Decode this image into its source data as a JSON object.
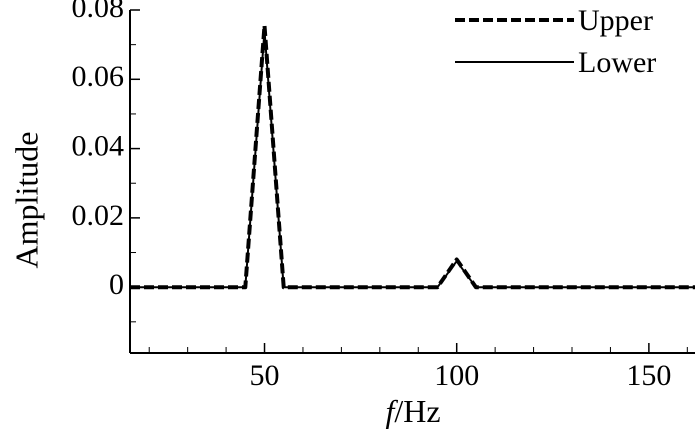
{
  "chart_data": {
    "type": "line",
    "xlabel_italic": "f",
    "xlabel_rest": "/Hz",
    "ylabel": "Amplitude",
    "xlim": [
      15,
      162
    ],
    "ylim": [
      -0.019,
      0.08
    ],
    "xticks": [
      50,
      100,
      150
    ],
    "xtick_labels": [
      "50",
      "100",
      "150"
    ],
    "yticks": [
      0,
      0.02,
      0.04,
      0.06,
      0.08
    ],
    "ytick_labels": [
      "0",
      "0.02",
      "0.04",
      "0.06",
      "0.08"
    ],
    "grid": false,
    "legend_position": "top-right",
    "series": [
      {
        "name": "Upper",
        "style": "dashed",
        "color": "#000000",
        "x": [
          15,
          45,
          50,
          55,
          95,
          100,
          105,
          162
        ],
        "y": [
          0,
          0,
          0.0755,
          0,
          0,
          0.008,
          0,
          0
        ]
      },
      {
        "name": "Lower",
        "style": "solid",
        "color": "#000000",
        "x": [
          15,
          45,
          50,
          55,
          95,
          100,
          105,
          162
        ],
        "y": [
          0,
          0,
          0.074,
          0,
          0,
          0.0075,
          0,
          0
        ]
      }
    ]
  }
}
